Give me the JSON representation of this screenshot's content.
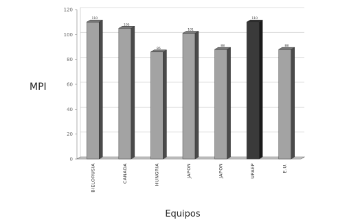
{
  "chart_data": {
    "type": "bar",
    "xlabel": "Equipos",
    "ylabel": "MPI",
    "ylim": [
      0,
      120
    ],
    "yticks": [
      0,
      20,
      40,
      60,
      80,
      100,
      120
    ],
    "grid": true,
    "categories": [
      "BIELORUSIA",
      "CANADA",
      "HUNGRIA",
      "JAPON",
      "JAPON",
      "UPAEP",
      "E.U."
    ],
    "values": [
      110,
      105,
      86,
      101,
      88,
      110,
      88
    ],
    "data_labels": [
      "110",
      "105",
      "86",
      "101",
      "88",
      "110",
      "88"
    ],
    "colors": {
      "bar_face": "#a3a3a3",
      "bar_side": "#4a4a4a",
      "bar_top": "#7a7a7a",
      "highlight_face": "#3a3a3a",
      "highlight_side": "#1a1a1a",
      "highlight_top": "#2c2c2c",
      "highlight_category": "UPAEP"
    }
  }
}
